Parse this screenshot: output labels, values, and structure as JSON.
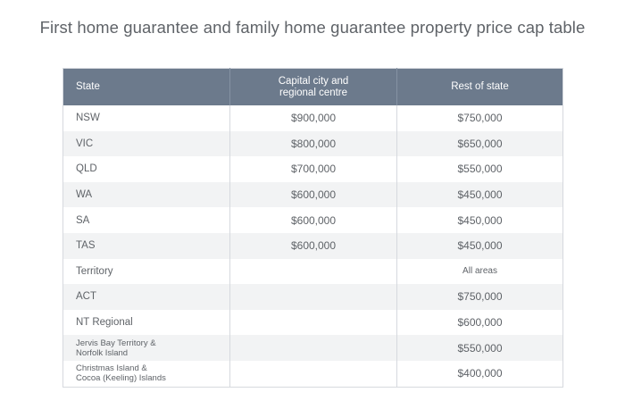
{
  "title": "First home guarantee and family home guarantee property price cap table",
  "table": {
    "headers": [
      "State",
      "Capital city and\nregional centre",
      "Rest of state"
    ],
    "rows": [
      {
        "state": "NSW",
        "capital": "$900,000",
        "rest": "$750,000"
      },
      {
        "state": "VIC",
        "capital": "$800,000",
        "rest": "$650,000"
      },
      {
        "state": "QLD",
        "capital": "$700,000",
        "rest": "$550,000"
      },
      {
        "state": "WA",
        "capital": "$600,000",
        "rest": "$450,000"
      },
      {
        "state": "SA",
        "capital": "$600,000",
        "rest": "$450,000"
      },
      {
        "state": "TAS",
        "capital": "$600,000",
        "rest": "$450,000"
      },
      {
        "state": "Territory",
        "capital": "",
        "rest": "All areas"
      },
      {
        "state": "ACT",
        "capital": "",
        "rest": "$750,000"
      },
      {
        "state": "NT Regional",
        "capital": "",
        "rest": "$600,000"
      },
      {
        "state": "Jervis Bay Territory &\nNorfolk Island",
        "capital": "",
        "rest": "$550,000"
      },
      {
        "state": "Christmas Island &\nCocoa (Keeling) Islands",
        "capital": "",
        "rest": "$400,000"
      }
    ]
  },
  "colors": {
    "header_bg": "#6c7a8c",
    "stripe_bg": "#f2f3f4",
    "text": "#5f6368"
  }
}
